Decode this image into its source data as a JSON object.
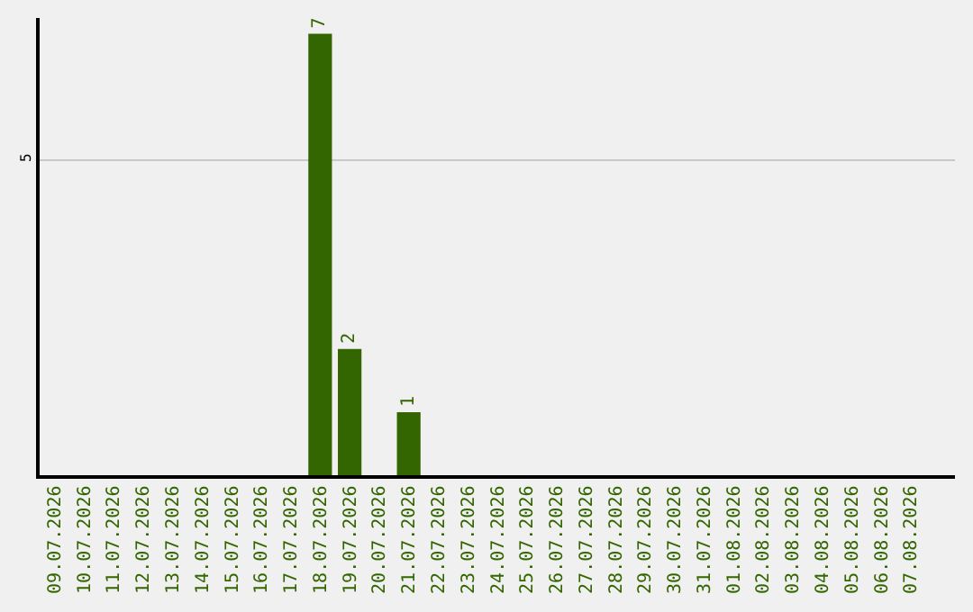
{
  "chart_data": {
    "type": "bar",
    "categories": [
      "09.07.2026",
      "10.07.2026",
      "11.07.2026",
      "12.07.2026",
      "13.07.2026",
      "14.07.2026",
      "15.07.2026",
      "16.07.2026",
      "17.07.2026",
      "18.07.2026",
      "19.07.2026",
      "20.07.2026",
      "21.07.2026",
      "22.07.2026",
      "23.07.2026",
      "24.07.2026",
      "25.07.2026",
      "26.07.2026",
      "27.07.2026",
      "28.07.2026",
      "29.07.2026",
      "30.07.2026",
      "31.07.2026",
      "01.08.2026",
      "02.08.2026",
      "03.08.2026",
      "04.08.2026",
      "05.08.2026",
      "06.08.2026",
      "07.08.2026"
    ],
    "values": [
      0,
      0,
      0,
      0,
      0,
      0,
      0,
      0,
      0,
      7,
      2,
      0,
      1,
      0,
      0,
      0,
      0,
      0,
      0,
      0,
      0,
      0,
      0,
      0,
      0,
      0,
      0,
      0,
      0,
      0
    ],
    "value_labels": [
      null,
      null,
      null,
      null,
      null,
      null,
      null,
      null,
      null,
      "7",
      "2",
      null,
      "1",
      null,
      null,
      null,
      null,
      null,
      null,
      null,
      null,
      null,
      null,
      null,
      null,
      null,
      null,
      null,
      null,
      null
    ],
    "color": "#336600",
    "ylim": [
      0,
      7.25
    ],
    "yticks": [
      5
    ],
    "grid": "y",
    "legend": false
  }
}
